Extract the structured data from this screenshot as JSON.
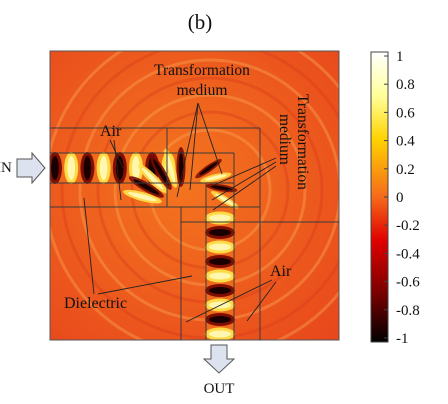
{
  "panel_label": "(b)",
  "labels": {
    "air_top": "Air",
    "transformation_medium_top": [
      "Transformation",
      "medium"
    ],
    "transformation_medium_right": [
      "Transformation",
      "medium"
    ],
    "air_bottom": "Air",
    "dielectric": "Dielectric",
    "input": "IN",
    "output": "OUT"
  },
  "colorbar": {
    "ticks": [
      "1",
      "0.8",
      "0.6",
      "0.4",
      "0.2",
      "0",
      "-0.2",
      "-0.4",
      "-0.6",
      "-0.8",
      "-1"
    ],
    "min": -1,
    "max": 1,
    "colormap": [
      "#000000",
      "#7a0000",
      "#e00000",
      "#f56a1a",
      "#ffd300",
      "#ffff9a",
      "#ffffff"
    ]
  },
  "colors": {
    "field_background": "#ef5a1e",
    "frame": "#333333",
    "arrow_fill": "#dde3ee",
    "arrow_stroke": "#555555"
  }
}
